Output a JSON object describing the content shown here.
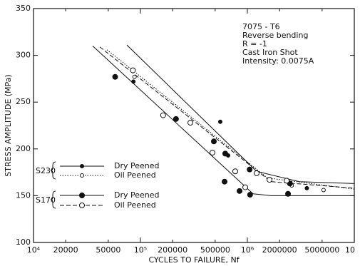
{
  "chart_data": {
    "type": "scatter",
    "xlabel": "CYCLES TO FAILURE, Nf",
    "ylabel": "STRESS AMPLITUDE (MPa)",
    "annotations": [
      "7075 - T6",
      "Reverse bending",
      "R = -1",
      "Cast Iron Shot",
      "Intensity: 0.0075A"
    ],
    "xscale": "log",
    "xlim": [
      10000,
      10000000
    ],
    "ylim": [
      100,
      350
    ],
    "xticks": [
      {
        "value": 10000,
        "label": "10⁴"
      },
      20000,
      50000,
      {
        "value": 100000,
        "label": "10⁵"
      },
      200000,
      500000,
      {
        "value": 1000000,
        "label": "10⁶"
      },
      2000000,
      5000000,
      {
        "value": 10000000,
        "label": "10"
      }
    ],
    "xtick_labels_short": [
      "2",
      "5"
    ],
    "yticks": [
      100,
      150,
      200,
      250,
      300,
      350
    ],
    "series": [
      {
        "group": "S230",
        "name": "Dry Peened",
        "color": "#111111",
        "marker": "filled",
        "marker_size": 2.5,
        "dash": "solid",
        "x": [
          86000,
          558000,
          661000,
          3600000
        ],
        "values": [
          272,
          229,
          193,
          158
        ],
        "fit_x": [
          74700,
          1220000,
          3070000,
          10000000
        ],
        "fit_y": [
          311,
          176,
          165,
          163
        ]
      },
      {
        "group": "S230",
        "name": "Oil Peened",
        "color": "#111111",
        "marker": "open",
        "marker_size": 2.5,
        "dash": "dotted",
        "x": [
          88000,
          2600000,
          5160000
        ],
        "values": [
          277,
          161,
          156
        ],
        "fit_x": [
          48600,
          1540000,
          10000000
        ],
        "fit_y": [
          306,
          169,
          157
        ]
      },
      {
        "group": "S170",
        "name": "Dry Peened",
        "color": "#111111",
        "marker": "filled",
        "marker_size": 3.5,
        "dash": "solid",
        "x": [
          58000,
          215000,
          486000,
          621000,
          612000,
          845000,
          1050000,
          1060000,
          2400000,
          2500000
        ],
        "values": [
          277,
          232,
          208,
          195,
          165,
          155,
          178,
          151,
          152,
          163
        ],
        "fit_x": [
          35800,
          1130000,
          1670000,
          10000000
        ],
        "fit_y": [
          310,
          152,
          150,
          150
        ]
      },
      {
        "group": "S170",
        "name": "Oil Peened",
        "color": "#111111",
        "marker": "open",
        "marker_size": 3.5,
        "dash": "dashed",
        "x": [
          85000,
          163000,
          293000,
          471000,
          770000,
          955000,
          1220000,
          1610000,
          2330000
        ],
        "values": [
          284,
          236,
          228,
          196,
          176,
          159,
          174,
          167,
          166
        ],
        "fit_x": [
          41700,
          1660000,
          10000000
        ],
        "fit_y": [
          309,
          165,
          158
        ]
      }
    ]
  }
}
